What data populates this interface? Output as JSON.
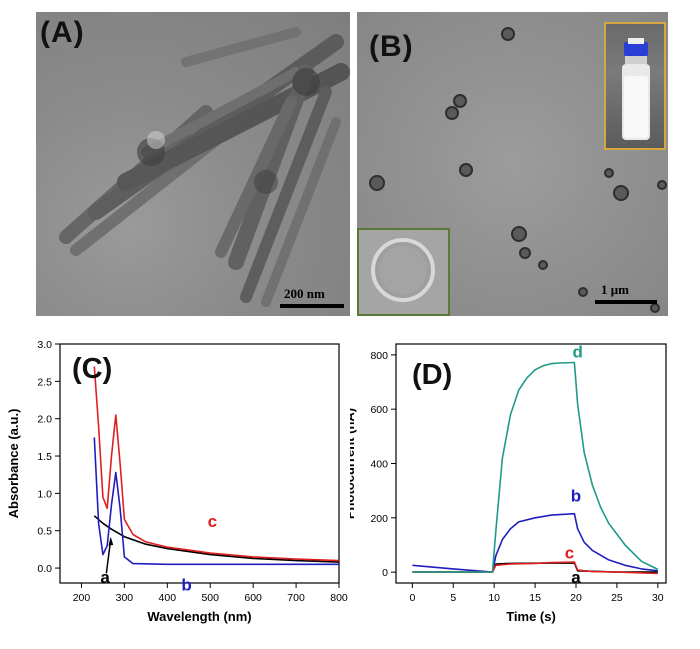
{
  "panels": {
    "A": {
      "letter": "(A)",
      "scale_label": "200 nm"
    },
    "B": {
      "letter": "(B)",
      "scale_label": "1 μm"
    },
    "C": {
      "letter": "(C)"
    },
    "D": {
      "letter": "(D)"
    }
  },
  "chart_data": [
    {
      "type": "line",
      "panel": "C",
      "xlabel": "Wavelength (nm)",
      "ylabel": "Absorbance (a.u.)",
      "xlim": [
        150,
        800
      ],
      "ylim": [
        -0.2,
        3.0
      ],
      "xticks": [
        "200",
        "300",
        "400",
        "500",
        "600",
        "700",
        "800"
      ],
      "yticks": [
        "0.0",
        "0.5",
        "1.0",
        "1.5",
        "2.0",
        "2.5",
        "3.0"
      ],
      "grid": false,
      "series": [
        {
          "name": "a",
          "color": "#000000",
          "x": [
            230,
            250,
            270,
            300,
            350,
            400,
            450,
            500,
            600,
            700,
            800
          ],
          "y": [
            0.7,
            0.6,
            0.52,
            0.42,
            0.32,
            0.26,
            0.22,
            0.18,
            0.13,
            0.1,
            0.08
          ]
        },
        {
          "name": "b",
          "color": "#1f1fbf",
          "x": [
            230,
            240,
            250,
            260,
            270,
            280,
            290,
            300,
            320,
            400,
            500,
            600,
            700,
            800
          ],
          "y": [
            1.75,
            0.6,
            0.18,
            0.3,
            0.85,
            1.28,
            0.8,
            0.15,
            0.06,
            0.05,
            0.05,
            0.05,
            0.05,
            0.05
          ]
        },
        {
          "name": "c",
          "color": "#e02020",
          "x": [
            230,
            240,
            250,
            260,
            270,
            280,
            290,
            300,
            320,
            350,
            400,
            450,
            500,
            600,
            700,
            800
          ],
          "y": [
            2.7,
            1.9,
            0.95,
            0.8,
            1.5,
            2.05,
            1.4,
            0.65,
            0.45,
            0.35,
            0.28,
            0.24,
            0.2,
            0.15,
            0.12,
            0.1
          ]
        }
      ],
      "annotations": [
        {
          "text": "a",
          "x": 255,
          "y": -0.2,
          "color": "#000000"
        },
        {
          "text": "b",
          "x": 445,
          "y": -0.3,
          "color": "#1f1fbf"
        },
        {
          "text": "c",
          "x": 505,
          "y": 0.55,
          "color": "#e02020"
        }
      ]
    },
    {
      "type": "line",
      "panel": "D",
      "xlabel": "Time (s)",
      "ylabel": "Photocurrent (nA)",
      "xlim": [
        -2,
        31
      ],
      "ylim": [
        -40,
        840
      ],
      "xticks": [
        "0",
        "5",
        "10",
        "15",
        "20",
        "25",
        "30"
      ],
      "yticks": [
        "0",
        "200",
        "400",
        "600",
        "800"
      ],
      "grid": false,
      "series": [
        {
          "name": "a",
          "color": "#000000",
          "x": [
            0,
            5,
            9.8,
            10.2,
            12,
            15,
            19.8,
            20.2,
            25,
            30
          ],
          "y": [
            0,
            0,
            0,
            30,
            32,
            33,
            34,
            5,
            0,
            0
          ]
        },
        {
          "name": "b",
          "color": "#1f1fbf",
          "x": [
            0,
            5,
            9.8,
            10.2,
            11,
            12,
            13,
            15,
            17,
            19.8,
            20.2,
            21,
            22,
            24,
            26,
            28,
            30
          ],
          "y": [
            25,
            12,
            0,
            60,
            120,
            160,
            185,
            200,
            210,
            215,
            160,
            110,
            80,
            45,
            25,
            12,
            5
          ]
        },
        {
          "name": "c",
          "color": "#e02020",
          "x": [
            0,
            5,
            9.8,
            10.2,
            12,
            15,
            17,
            19.8,
            20.2,
            22,
            25,
            30
          ],
          "y": [
            0,
            0,
            0,
            25,
            30,
            32,
            35,
            37,
            8,
            2,
            0,
            -5
          ]
        },
        {
          "name": "d",
          "color": "#1e9a88",
          "x": [
            0,
            5,
            9.8,
            10.2,
            11,
            12,
            13,
            14,
            15,
            16,
            17,
            18,
            19.8,
            20.2,
            21,
            22,
            23,
            24,
            26,
            28,
            30
          ],
          "y": [
            0,
            0,
            0,
            150,
            420,
            580,
            670,
            715,
            745,
            760,
            768,
            770,
            772,
            620,
            440,
            320,
            240,
            180,
            100,
            40,
            10
          ]
        }
      ],
      "annotations": [
        {
          "text": "a",
          "x": 20.0,
          "y": -40,
          "color": "#000000"
        },
        {
          "text": "b",
          "x": 20.0,
          "y": 260,
          "color": "#1f1fbf"
        },
        {
          "text": "c",
          "x": 19.2,
          "y": 50,
          "color": "#e02020"
        },
        {
          "text": "d",
          "x": 20.2,
          "y": 790,
          "color": "#1e9a88"
        }
      ]
    }
  ]
}
